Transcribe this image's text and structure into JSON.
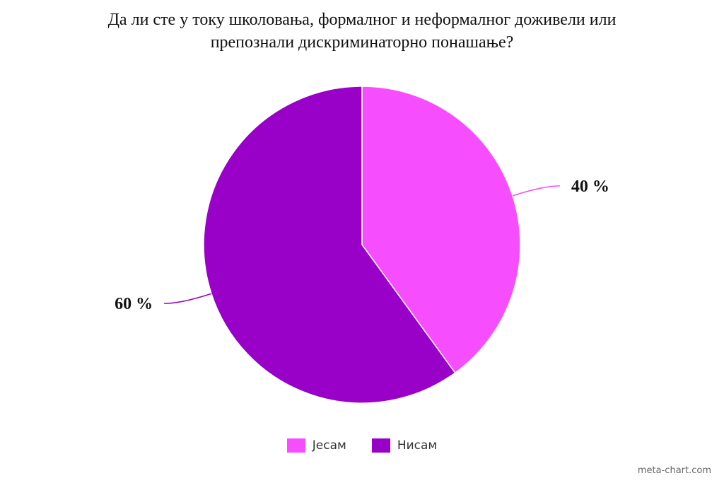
{
  "chart_data": {
    "type": "pie",
    "title_lines": [
      "Да ли сте у току школовања, формалног и неформалног доживели или",
      "препознали дискриминаторно понашање?"
    ],
    "categories": [
      "Јесам",
      "Нисам"
    ],
    "values": [
      40,
      60
    ],
    "value_labels": [
      "40 %",
      "60 %"
    ],
    "colors": [
      "#f64dff",
      "#9900c8"
    ],
    "legend_position": "bottom"
  },
  "watermark": "meta-chart.com"
}
